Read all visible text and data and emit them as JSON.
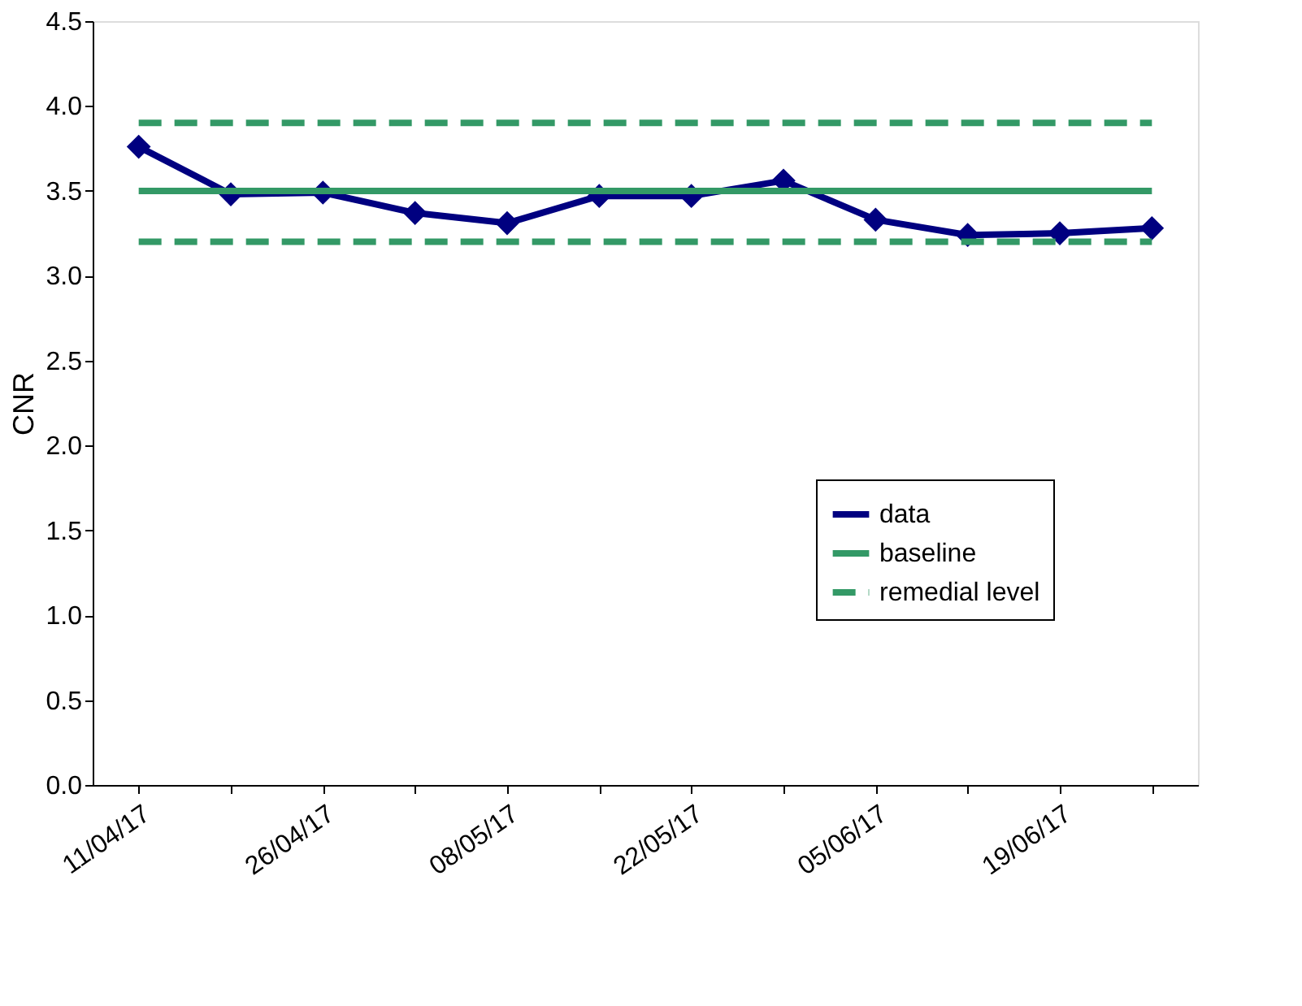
{
  "chart_data": {
    "type": "line",
    "ylabel": "CNR",
    "categories": [
      "11/04/17",
      null,
      "26/04/17",
      null,
      "08/05/17",
      null,
      "22/05/17",
      null,
      "05/06/17",
      null,
      "19/06/17",
      null
    ],
    "series": [
      {
        "name": "data",
        "color": "#000080",
        "marker": "diamond",
        "line_style": "solid",
        "values": [
          3.76,
          3.48,
          3.49,
          3.37,
          3.31,
          3.47,
          3.47,
          3.56,
          3.33,
          3.24,
          3.25,
          3.28
        ]
      },
      {
        "name": "baseline",
        "color": "#339966",
        "marker": "none",
        "line_style": "solid",
        "values": [
          3.5,
          3.5,
          3.5,
          3.5,
          3.5,
          3.5,
          3.5,
          3.5,
          3.5,
          3.5,
          3.5,
          3.5
        ]
      },
      {
        "name": "remedial level",
        "color": "#339966",
        "marker": "none",
        "line_style": "dashed",
        "values": [
          3.9,
          3.9,
          3.9,
          3.9,
          3.9,
          3.9,
          3.9,
          3.9,
          3.9,
          3.9,
          3.9,
          3.9
        ]
      },
      {
        "color": "#339966",
        "marker": "none",
        "line_style": "dashed",
        "values": [
          3.2,
          3.2,
          3.2,
          3.2,
          3.2,
          3.2,
          3.2,
          3.2,
          3.2,
          3.2,
          3.2,
          3.2
        ]
      }
    ],
    "ylim": [
      0,
      4.5
    ],
    "yticks": [
      {
        "value": 0,
        "label": "0.0"
      },
      {
        "value": 0.5,
        "label": "0.5"
      },
      {
        "value": 1,
        "label": "1.0"
      },
      {
        "value": 1.5,
        "label": "1.5"
      },
      {
        "value": 2,
        "label": "2.0"
      },
      {
        "value": 2.5,
        "label": "2.5"
      },
      {
        "value": 3,
        "label": "3.0"
      },
      {
        "value": 3.5,
        "label": "3.5"
      },
      {
        "value": 4,
        "label": "4.0"
      },
      {
        "value": 4.5,
        "label": "4.5"
      }
    ],
    "grid": false,
    "legend": "right"
  }
}
